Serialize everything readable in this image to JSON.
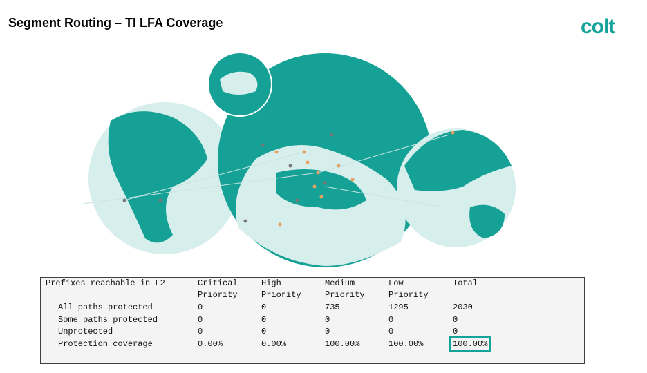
{
  "header": {
    "title": "Segment Routing – TI LFA Coverage",
    "logo": "colt"
  },
  "table": {
    "columns": [
      "Prefixes reachable in L2",
      "Critical Priority",
      "High Priority",
      "Medium Priority",
      "Low Priority",
      "Total"
    ],
    "rows": [
      [
        "All paths protected",
        0,
        0,
        735,
        1295,
        2030
      ],
      [
        "Some paths protected",
        0,
        0,
        0,
        0,
        0
      ],
      [
        "Unprotected",
        0,
        0,
        0,
        0,
        0
      ],
      [
        "Protection coverage",
        "0.00%",
        "0.00%",
        "100.00%",
        "100.00%",
        "100.00%"
      ]
    ]
  }
}
